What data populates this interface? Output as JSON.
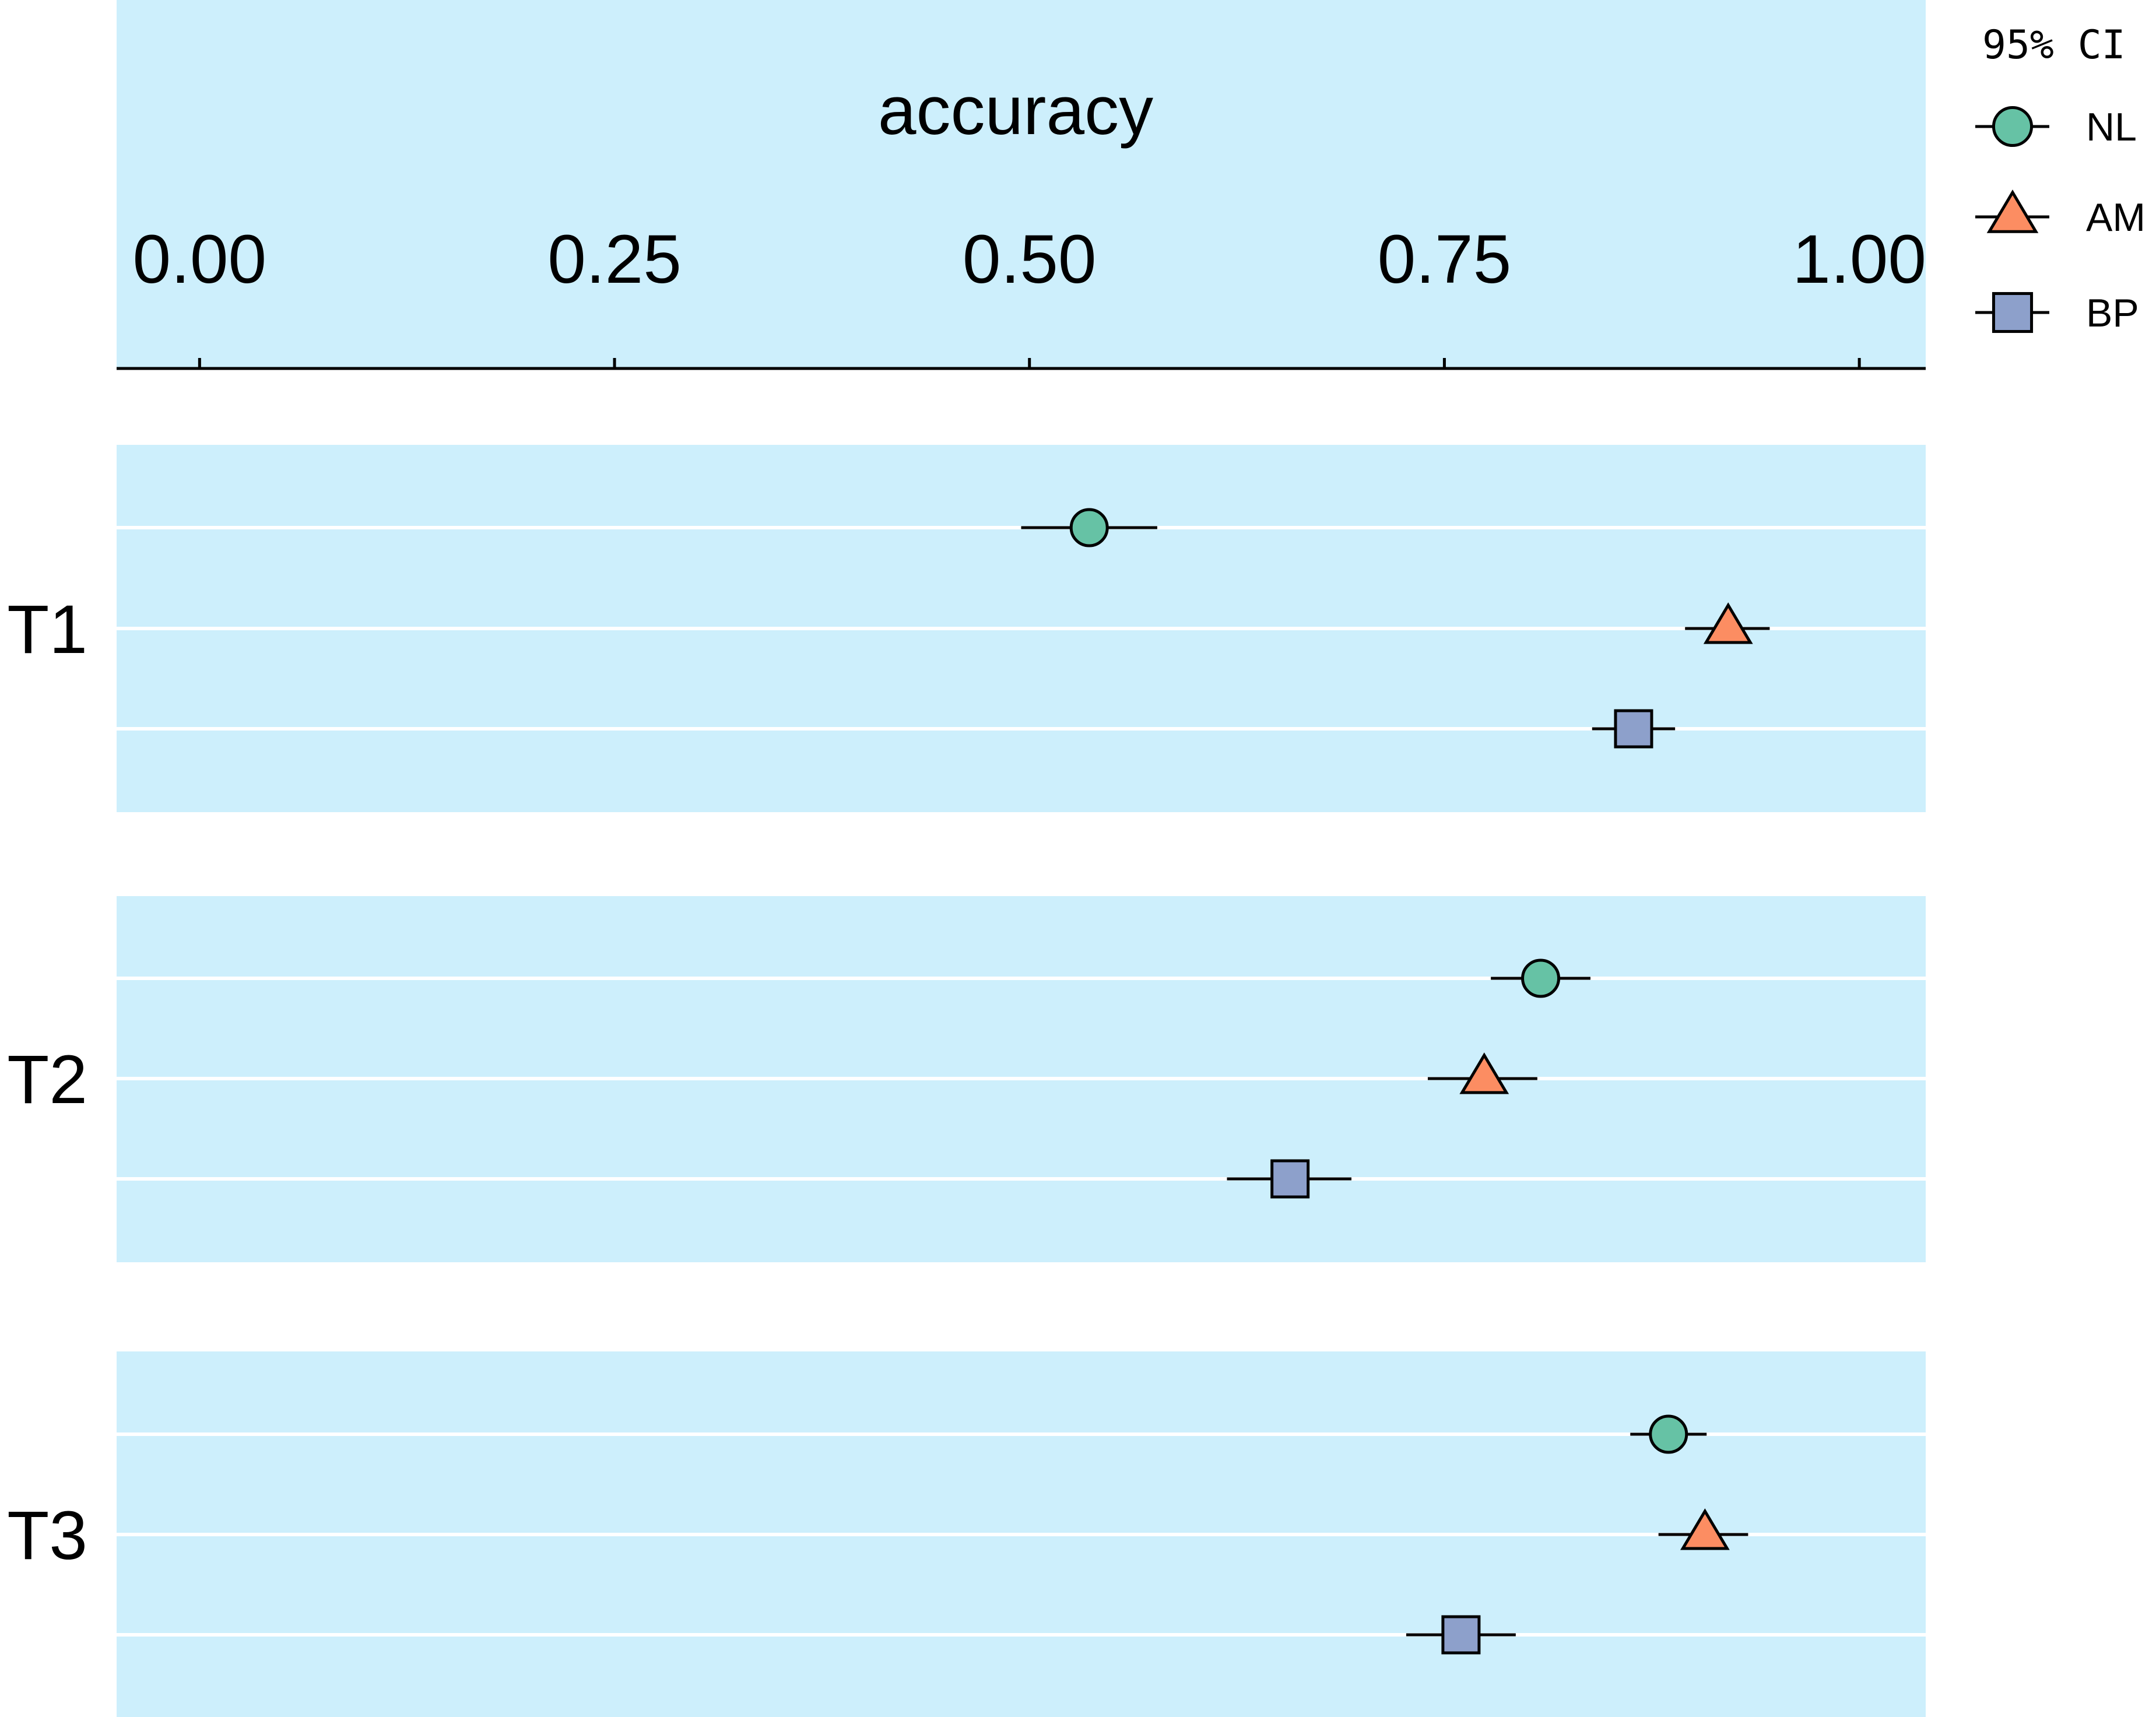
{
  "chart_data": {
    "type": "scatter",
    "subtype": "dot-and-whisker",
    "xlabel": "accuracy",
    "x_axis_position": "top",
    "xlim": [
      -0.05,
      1.04
    ],
    "xticks": [
      0.0,
      0.25,
      0.5,
      0.75,
      1.0
    ],
    "xtick_labels": [
      "0.00",
      "0.25",
      "0.50",
      "0.75",
      "1.00"
    ],
    "facets": [
      "T1",
      "T2",
      "T3"
    ],
    "legend": {
      "title": "95% CI",
      "placement": "top-right, outside plot",
      "entries": [
        "NL",
        "AM",
        "BP"
      ]
    },
    "series": [
      {
        "name": "NL",
        "marker": "circle",
        "color": "#66c2a5",
        "values": [
          0.536,
          0.808,
          0.885
        ],
        "ci_low": [
          0.495,
          0.778,
          0.862
        ],
        "ci_high": [
          0.577,
          0.838,
          0.908
        ]
      },
      {
        "name": "AM",
        "marker": "triangle",
        "color": "#fc8d62",
        "values": [
          0.921,
          0.774,
          0.907
        ],
        "ci_low": [
          0.895,
          0.74,
          0.879
        ],
        "ci_high": [
          0.946,
          0.806,
          0.933
        ]
      },
      {
        "name": "BP",
        "marker": "square",
        "color": "#8da0cb",
        "values": [
          0.864,
          0.657,
          0.76
        ],
        "ci_low": [
          0.839,
          0.619,
          0.727
        ],
        "ci_high": [
          0.889,
          0.694,
          0.793
        ]
      }
    ],
    "panel_background": "#cdeffc",
    "grid": true,
    "grid_color": "#ffffff"
  }
}
